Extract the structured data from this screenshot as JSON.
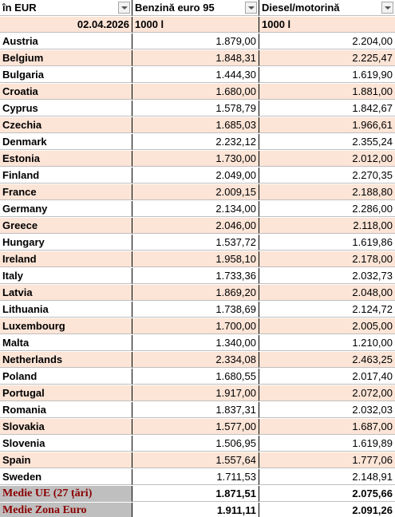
{
  "header": {
    "columns": [
      "în EUR",
      "Benzină euro 95",
      "Diesel/motorină"
    ]
  },
  "subheader": [
    "02.04.2026",
    "1000 l",
    "1000 l"
  ],
  "table": {
    "rows": [
      [
        "Austria",
        "1.879,00",
        "2.204,00"
      ],
      [
        "Belgium",
        "1.848,31",
        "2.225,47"
      ],
      [
        "Bulgaria",
        "1.444,30",
        "1.619,90"
      ],
      [
        "Croatia",
        "1.680,00",
        "1.881,00"
      ],
      [
        "Cyprus",
        "1.578,79",
        "1.842,67"
      ],
      [
        "Czechia",
        "1.685,03",
        "1.966,61"
      ],
      [
        "Denmark",
        "2.232,12",
        "2.355,24"
      ],
      [
        "Estonia",
        "1.730,00",
        "2.012,00"
      ],
      [
        "Finland",
        "2.049,00",
        "2.270,35"
      ],
      [
        "France",
        "2.009,15",
        "2.188,80"
      ],
      [
        "Germany",
        "2.134,00",
        "2.286,00"
      ],
      [
        "Greece",
        "2.046,00",
        "2.118,00"
      ],
      [
        "Hungary",
        "1.537,72",
        "1.619,86"
      ],
      [
        "Ireland",
        "1.958,10",
        "2.178,00"
      ],
      [
        "Italy",
        "1.733,36",
        "2.032,73"
      ],
      [
        "Latvia",
        "1.869,20",
        "2.048,00"
      ],
      [
        "Lithuania",
        "1.738,69",
        "2.124,72"
      ],
      [
        "Luxembourg",
        "1.700,00",
        "2.005,00"
      ],
      [
        "Malta",
        "1.340,00",
        "1.210,00"
      ],
      [
        "Netherlands",
        "2.334,08",
        "2.463,25"
      ],
      [
        "Poland",
        "1.680,55",
        "2.017,40"
      ],
      [
        "Portugal",
        "1.917,00",
        "2.072,00"
      ],
      [
        "Romania",
        "1.837,31",
        "2.032,03"
      ],
      [
        "Slovakia",
        "1.577,00",
        "1.687,00"
      ],
      [
        "Slovenia",
        "1.506,95",
        "1.619,89"
      ],
      [
        "Spain",
        "1.557,64",
        "1.777,06"
      ],
      [
        "Sweden",
        "1.711,53",
        "2.148,91"
      ]
    ]
  },
  "summary": {
    "rows": [
      [
        "Medie UE (27 țări)",
        "1.871,51",
        "2.075,66"
      ],
      [
        "Medie Zona Euro",
        "1.911,11",
        "2.091,26"
      ]
    ]
  }
}
